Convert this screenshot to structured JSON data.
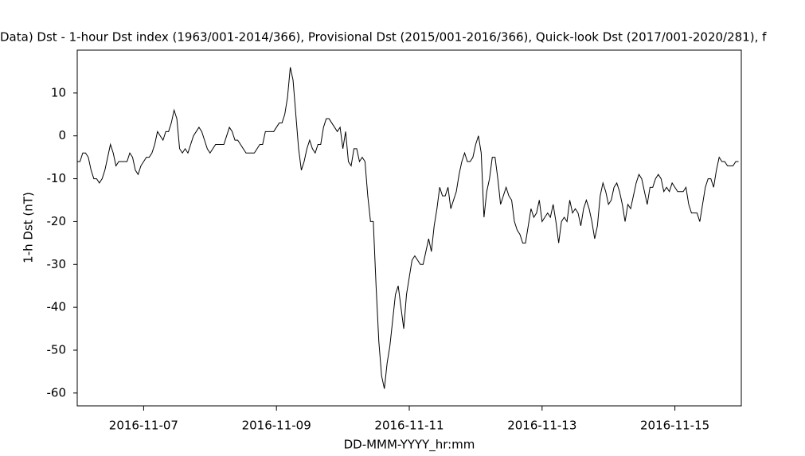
{
  "chart_data": {
    "type": "line",
    "title": "Data)  Dst - 1-hour Dst index (1963/001-2014/366), Provisional Dst (2015/001-2016/366), Quick-look Dst (2017/001-2020/281), f",
    "x_label": "DD-MMM-YYYY_hr:mm",
    "y_label": "1-h Dst (nT)",
    "x": [
      "2016-11-06 00:00",
      "2016-11-06 01:00",
      "2016-11-06 02:00",
      "2016-11-06 03:00",
      "2016-11-06 04:00",
      "2016-11-06 05:00",
      "2016-11-06 06:00",
      "2016-11-06 07:00",
      "2016-11-06 08:00",
      "2016-11-06 09:00",
      "2016-11-06 10:00",
      "2016-11-06 11:00",
      "2016-11-06 12:00",
      "2016-11-06 13:00",
      "2016-11-06 14:00",
      "2016-11-06 15:00",
      "2016-11-06 16:00",
      "2016-11-06 17:00",
      "2016-11-06 18:00",
      "2016-11-06 19:00",
      "2016-11-06 20:00",
      "2016-11-06 21:00",
      "2016-11-06 22:00",
      "2016-11-06 23:00",
      "2016-11-07 00:00",
      "2016-11-07 01:00",
      "2016-11-07 02:00",
      "2016-11-07 03:00",
      "2016-11-07 04:00",
      "2016-11-07 05:00",
      "2016-11-07 06:00",
      "2016-11-07 07:00",
      "2016-11-07 08:00",
      "2016-11-07 09:00",
      "2016-11-07 10:00",
      "2016-11-07 11:00",
      "2016-11-07 12:00",
      "2016-11-07 13:00",
      "2016-11-07 14:00",
      "2016-11-07 15:00",
      "2016-11-07 16:00",
      "2016-11-07 17:00",
      "2016-11-07 18:00",
      "2016-11-07 19:00",
      "2016-11-07 20:00",
      "2016-11-07 21:00",
      "2016-11-07 22:00",
      "2016-11-07 23:00",
      "2016-11-08 00:00",
      "2016-11-08 01:00",
      "2016-11-08 02:00",
      "2016-11-08 03:00",
      "2016-11-08 04:00",
      "2016-11-08 05:00",
      "2016-11-08 06:00",
      "2016-11-08 07:00",
      "2016-11-08 08:00",
      "2016-11-08 09:00",
      "2016-11-08 10:00",
      "2016-11-08 11:00",
      "2016-11-08 12:00",
      "2016-11-08 13:00",
      "2016-11-08 14:00",
      "2016-11-08 15:00",
      "2016-11-08 16:00",
      "2016-11-08 17:00",
      "2016-11-08 18:00",
      "2016-11-08 19:00",
      "2016-11-08 20:00",
      "2016-11-08 21:00",
      "2016-11-08 22:00",
      "2016-11-08 23:00",
      "2016-11-09 00:00",
      "2016-11-09 01:00",
      "2016-11-09 02:00",
      "2016-11-09 03:00",
      "2016-11-09 04:00",
      "2016-11-09 05:00",
      "2016-11-09 06:00",
      "2016-11-09 07:00",
      "2016-11-09 08:00",
      "2016-11-09 09:00",
      "2016-11-09 10:00",
      "2016-11-09 11:00",
      "2016-11-09 12:00",
      "2016-11-09 13:00",
      "2016-11-09 14:00",
      "2016-11-09 15:00",
      "2016-11-09 16:00",
      "2016-11-09 17:00",
      "2016-11-09 18:00",
      "2016-11-09 19:00",
      "2016-11-09 20:00",
      "2016-11-09 21:00",
      "2016-11-09 22:00",
      "2016-11-09 23:00",
      "2016-11-10 00:00",
      "2016-11-10 01:00",
      "2016-11-10 02:00",
      "2016-11-10 03:00",
      "2016-11-10 04:00",
      "2016-11-10 05:00",
      "2016-11-10 06:00",
      "2016-11-10 07:00",
      "2016-11-10 08:00",
      "2016-11-10 09:00",
      "2016-11-10 10:00",
      "2016-11-10 11:00",
      "2016-11-10 12:00",
      "2016-11-10 13:00",
      "2016-11-10 14:00",
      "2016-11-10 15:00",
      "2016-11-10 16:00",
      "2016-11-10 17:00",
      "2016-11-10 18:00",
      "2016-11-10 19:00",
      "2016-11-10 20:00",
      "2016-11-10 21:00",
      "2016-11-10 22:00",
      "2016-11-10 23:00",
      "2016-11-11 00:00",
      "2016-11-11 01:00",
      "2016-11-11 02:00",
      "2016-11-11 03:00",
      "2016-11-11 04:00",
      "2016-11-11 05:00",
      "2016-11-11 06:00",
      "2016-11-11 07:00",
      "2016-11-11 08:00",
      "2016-11-11 09:00",
      "2016-11-11 10:00",
      "2016-11-11 11:00",
      "2016-11-11 12:00",
      "2016-11-11 13:00",
      "2016-11-11 14:00",
      "2016-11-11 15:00",
      "2016-11-11 16:00",
      "2016-11-11 17:00",
      "2016-11-11 18:00",
      "2016-11-11 19:00",
      "2016-11-11 20:00",
      "2016-11-11 21:00",
      "2016-11-11 22:00",
      "2016-11-11 23:00",
      "2016-11-12 00:00",
      "2016-11-12 01:00",
      "2016-11-12 02:00",
      "2016-11-12 03:00",
      "2016-11-12 04:00",
      "2016-11-12 05:00",
      "2016-11-12 06:00",
      "2016-11-12 07:00",
      "2016-11-12 08:00",
      "2016-11-12 09:00",
      "2016-11-12 10:00",
      "2016-11-12 11:00",
      "2016-11-12 12:00",
      "2016-11-12 13:00",
      "2016-11-12 14:00",
      "2016-11-12 15:00",
      "2016-11-12 16:00",
      "2016-11-12 17:00",
      "2016-11-12 18:00",
      "2016-11-12 19:00",
      "2016-11-12 20:00",
      "2016-11-12 21:00",
      "2016-11-12 22:00",
      "2016-11-12 23:00",
      "2016-11-13 00:00",
      "2016-11-13 01:00",
      "2016-11-13 02:00",
      "2016-11-13 03:00",
      "2016-11-13 04:00",
      "2016-11-13 05:00",
      "2016-11-13 06:00",
      "2016-11-13 07:00",
      "2016-11-13 08:00",
      "2016-11-13 09:00",
      "2016-11-13 10:00",
      "2016-11-13 11:00",
      "2016-11-13 12:00",
      "2016-11-13 13:00",
      "2016-11-13 14:00",
      "2016-11-13 15:00",
      "2016-11-13 16:00",
      "2016-11-13 17:00",
      "2016-11-13 18:00",
      "2016-11-13 19:00",
      "2016-11-13 20:00",
      "2016-11-13 21:00",
      "2016-11-13 22:00",
      "2016-11-13 23:00",
      "2016-11-14 00:00",
      "2016-11-14 01:00",
      "2016-11-14 02:00",
      "2016-11-14 03:00",
      "2016-11-14 04:00",
      "2016-11-14 05:00",
      "2016-11-14 06:00",
      "2016-11-14 07:00",
      "2016-11-14 08:00",
      "2016-11-14 09:00",
      "2016-11-14 10:00",
      "2016-11-14 11:00",
      "2016-11-14 12:00",
      "2016-11-14 13:00",
      "2016-11-14 14:00",
      "2016-11-14 15:00",
      "2016-11-14 16:00",
      "2016-11-14 17:00",
      "2016-11-14 18:00",
      "2016-11-14 19:00",
      "2016-11-14 20:00",
      "2016-11-14 21:00",
      "2016-11-14 22:00",
      "2016-11-14 23:00",
      "2016-11-15 00:00",
      "2016-11-15 01:00",
      "2016-11-15 02:00",
      "2016-11-15 03:00",
      "2016-11-15 04:00",
      "2016-11-15 05:00",
      "2016-11-15 06:00",
      "2016-11-15 07:00",
      "2016-11-15 08:00",
      "2016-11-15 09:00",
      "2016-11-15 10:00",
      "2016-11-15 11:00",
      "2016-11-15 12:00",
      "2016-11-15 13:00",
      "2016-11-15 14:00",
      "2016-11-15 15:00",
      "2016-11-15 16:00",
      "2016-11-15 17:00",
      "2016-11-15 18:00",
      "2016-11-15 19:00",
      "2016-11-15 20:00",
      "2016-11-15 21:00",
      "2016-11-15 22:00",
      "2016-11-15 23:00"
    ],
    "values": [
      -6,
      -6,
      -4,
      -4,
      -5,
      -8,
      -10,
      -10,
      -11,
      -10,
      -8,
      -5,
      -2,
      -4,
      -7,
      -6,
      -6,
      -6,
      -6,
      -4,
      -5,
      -8,
      -9,
      -7,
      -6,
      -5,
      -5,
      -4,
      -2,
      1,
      0,
      -1,
      1,
      1,
      3,
      6,
      4,
      -3,
      -4,
      -3,
      -4,
      -2,
      0,
      1,
      2,
      1,
      -1,
      -3,
      -4,
      -3,
      -2,
      -2,
      -2,
      -2,
      0,
      2,
      1,
      -1,
      -1,
      -2,
      -3,
      -4,
      -4,
      -4,
      -4,
      -3,
      -2,
      -2,
      1,
      1,
      1,
      1,
      2,
      3,
      3,
      5,
      9,
      16,
      13,
      5,
      -3,
      -8,
      -6,
      -3,
      -1,
      -3,
      -4,
      -2,
      -2,
      2,
      4,
      4,
      3,
      2,
      1,
      2,
      -3,
      1,
      -6,
      -7,
      -3,
      -3,
      -6,
      -5,
      -6,
      -14,
      -20,
      -20,
      -35,
      -48,
      -56,
      -59,
      -53,
      -49,
      -43,
      -37,
      -35,
      -40,
      -45,
      -37,
      -33,
      -29,
      -28,
      -29,
      -30,
      -30,
      -27,
      -24,
      -27,
      -21,
      -17,
      -12,
      -14,
      -14,
      -12,
      -17,
      -15,
      -13,
      -9,
      -6,
      -4,
      -6,
      -6,
      -5,
      -2,
      0,
      -4,
      -19,
      -13,
      -10,
      -5,
      -5,
      -10,
      -16,
      -14,
      -12,
      -14,
      -15,
      -20,
      -22,
      -23,
      -25,
      -25,
      -21,
      -17,
      -19,
      -18,
      -15,
      -20,
      -19,
      -18,
      -19,
      -16,
      -20,
      -25,
      -20,
      -19,
      -20,
      -15,
      -18,
      -17,
      -18,
      -21,
      -17,
      -15,
      -17,
      -20,
      -24,
      -21,
      -14,
      -11,
      -13,
      -16,
      -15,
      -12,
      -11,
      -13,
      -16,
      -20,
      -16,
      -17,
      -14,
      -11,
      -9,
      -10,
      -13,
      -16,
      -12,
      -12,
      -10,
      -9,
      -10,
      -13,
      -12,
      -13,
      -11,
      -12,
      -13,
      -13,
      -13,
      -12,
      -16,
      -18,
      -18,
      -18,
      -20,
      -16,
      -12,
      -10,
      -10,
      -12,
      -8,
      -5,
      -6,
      -6,
      -7,
      -7,
      -7,
      -6,
      -6
    ],
    "color": "#000000",
    "xlim": [
      "2016-11-06 00:00",
      "2016-11-16 00:00"
    ],
    "xticks": [
      {
        "value": "2016-11-07 00:00",
        "label": "2016-11-07"
      },
      {
        "value": "2016-11-09 00:00",
        "label": "2016-11-09"
      },
      {
        "value": "2016-11-11 00:00",
        "label": "2016-11-11"
      },
      {
        "value": "2016-11-13 00:00",
        "label": "2016-11-13"
      },
      {
        "value": "2016-11-15 00:00",
        "label": "2016-11-15"
      }
    ],
    "ylim": [
      -63,
      20
    ],
    "yticks": [
      -60,
      -50,
      -40,
      -30,
      -20,
      -10,
      0,
      10
    ],
    "grid": false
  }
}
